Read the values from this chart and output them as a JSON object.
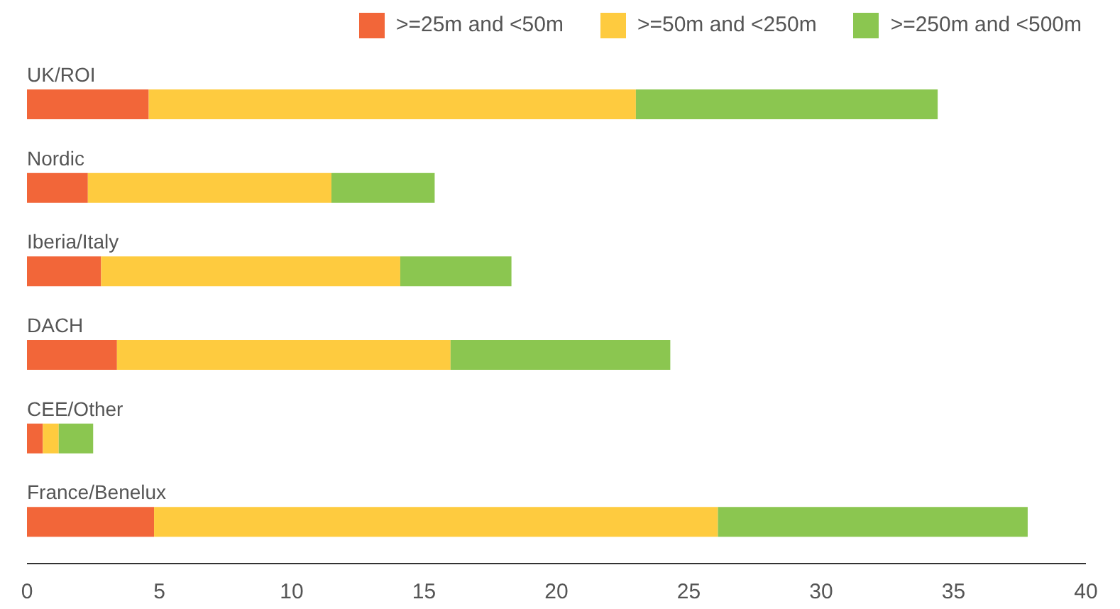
{
  "chart_data": {
    "type": "bar",
    "orientation": "horizontal",
    "stacked": true,
    "categories": [
      "UK/ROI",
      "Nordic",
      "Iberia/Italy",
      "DACH",
      "CEE/Other",
      "France/Benelux"
    ],
    "series": [
      {
        "name": ">=25m and <50m",
        "color": "#f26639",
        "values": [
          4.6,
          2.3,
          2.8,
          3.4,
          0.6,
          4.8
        ]
      },
      {
        "name": ">=50m and <250m",
        "color": "#fecb3f",
        "values": [
          18.4,
          9.2,
          11.3,
          12.6,
          0.6,
          21.3
        ]
      },
      {
        "name": ">=250m and <500m",
        "color": "#8bc650",
        "values": [
          11.4,
          3.9,
          4.2,
          8.3,
          1.3,
          11.7
        ]
      }
    ],
    "xlim": [
      0,
      40
    ],
    "xticks": [
      0,
      5,
      10,
      15,
      20,
      25,
      30,
      35,
      40
    ],
    "grid": false,
    "legend": "top right"
  }
}
